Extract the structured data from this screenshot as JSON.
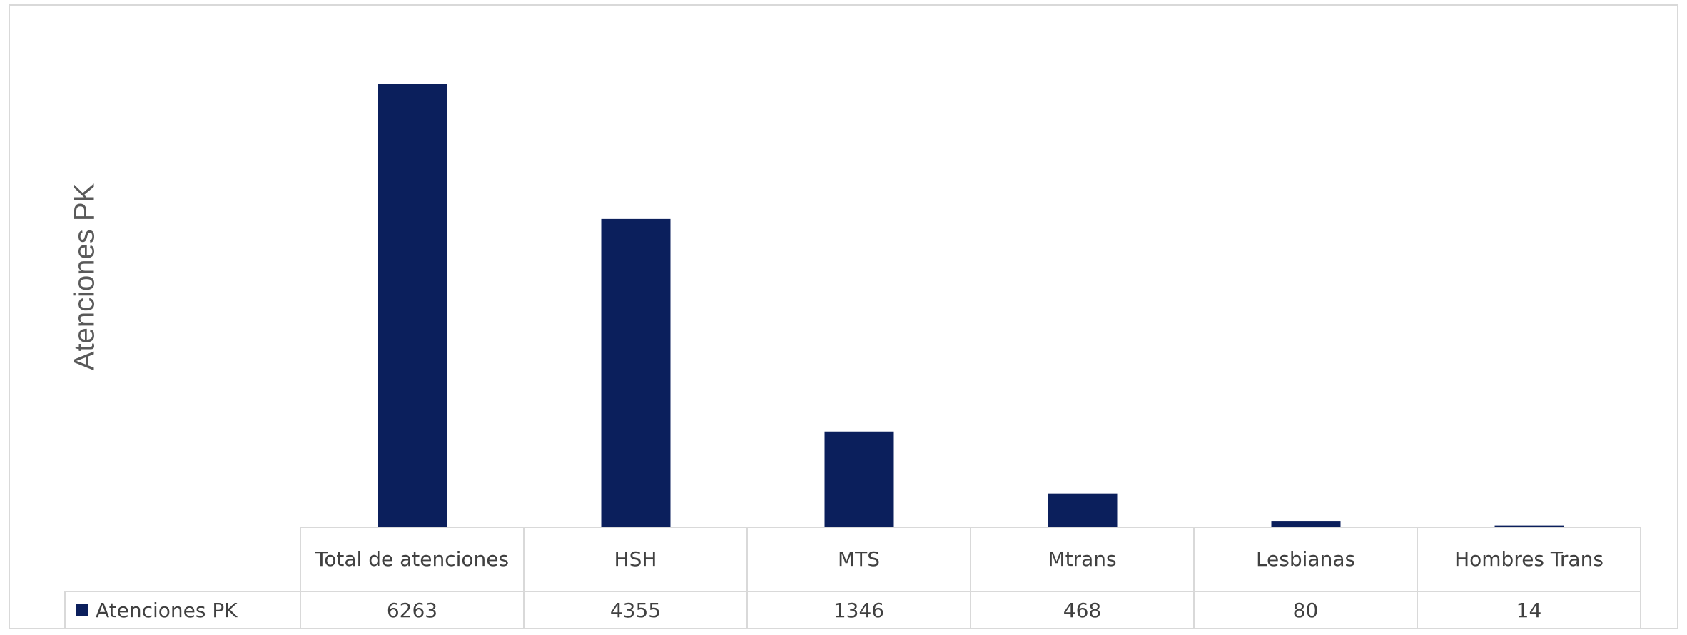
{
  "chart_data": {
    "type": "bar",
    "title": "",
    "xlabel": "",
    "ylabel": "Atenciones PK",
    "categories": [
      "Total de atenciones",
      "HSH",
      "MTS",
      "Mtrans",
      "Lesbianas",
      "Hombres Trans"
    ],
    "series": [
      {
        "name": "Atenciones PK",
        "values": [
          6263,
          4355,
          1346,
          468,
          80,
          14
        ]
      }
    ],
    "ylim": [
      0,
      6263
    ],
    "grid": false,
    "legend": "data-table",
    "colors": {
      "bar": "#0b1f5c"
    }
  }
}
